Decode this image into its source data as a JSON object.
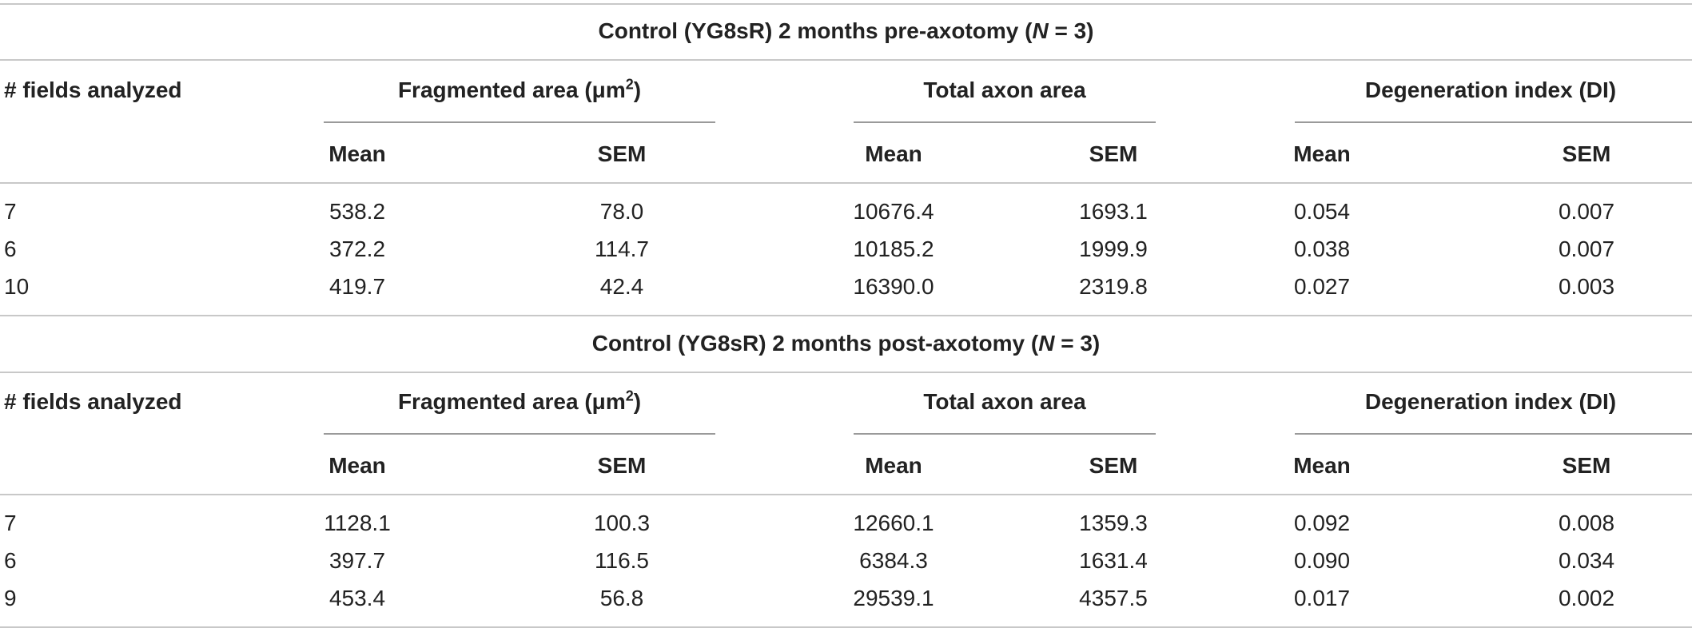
{
  "sections": [
    {
      "title_pre": "Control (YG8sR) 2 months pre-axotomy (",
      "title_n": "N",
      "title_post": " = 3)",
      "headers": {
        "fields": "# fields analyzed",
        "fragmented": "Fragmented area (μm",
        "fragmented_sup": "2",
        "fragmented_close": ")",
        "total": "Total axon area",
        "di": "Degeneration index (DI)",
        "mean": "Mean",
        "sem": "SEM"
      },
      "rows": [
        {
          "fields": "7",
          "frag_mean": "538.2",
          "frag_sem": "78.0",
          "total_mean": "10676.4",
          "total_sem": "1693.1",
          "di_mean": "0.054",
          "di_sem": "0.007"
        },
        {
          "fields": "6",
          "frag_mean": "372.2",
          "frag_sem": "114.7",
          "total_mean": "10185.2",
          "total_sem": "1999.9",
          "di_mean": "0.038",
          "di_sem": "0.007"
        },
        {
          "fields": "10",
          "frag_mean": "419.7",
          "frag_sem": "42.4",
          "total_mean": "16390.0",
          "total_sem": "2319.8",
          "di_mean": "0.027",
          "di_sem": "0.003"
        }
      ]
    },
    {
      "title_pre": "Control (YG8sR) 2 months post-axotomy (",
      "title_n": "N",
      "title_post": " = 3)",
      "headers": {
        "fields": "# fields analyzed",
        "fragmented": "Fragmented area (μm",
        "fragmented_sup": "2",
        "fragmented_close": ")",
        "total": "Total axon area",
        "di": "Degeneration index (DI)",
        "mean": "Mean",
        "sem": "SEM"
      },
      "rows": [
        {
          "fields": "7",
          "frag_mean": "1128.1",
          "frag_sem": "100.3",
          "total_mean": "12660.1",
          "total_sem": "1359.3",
          "di_mean": "0.092",
          "di_sem": "0.008"
        },
        {
          "fields": "6",
          "frag_mean": "397.7",
          "frag_sem": "116.5",
          "total_mean": "6384.3",
          "total_sem": "1631.4",
          "di_mean": "0.090",
          "di_sem": "0.034"
        },
        {
          "fields": "9",
          "frag_mean": "453.4",
          "frag_sem": "56.8",
          "total_mean": "29539.1",
          "total_sem": "4357.5",
          "di_mean": "0.017",
          "di_sem": "0.002"
        }
      ]
    }
  ]
}
